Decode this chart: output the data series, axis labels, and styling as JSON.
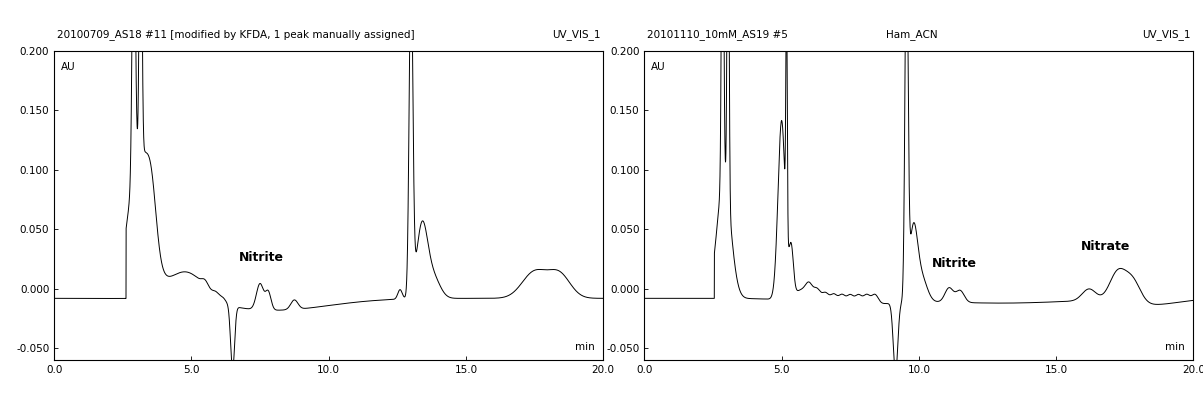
{
  "left_title_left": "20100709_AS18 #11 [modified by KFDA, 1 peak manually assigned]",
  "left_title_right": "UV_VIS_1",
  "right_title_left": "20101110_10mM_AS19 #5",
  "right_title_mid": "Ham_ACN",
  "right_title_right": "UV_VIS_1",
  "ylabel": "AU",
  "xlabel": "min",
  "ylim": [
    -0.06,
    0.2
  ],
  "xlim": [
    0.0,
    20.0
  ],
  "line_color": "#000000",
  "bg_color": "#ffffff",
  "fontsize_title": 7.5,
  "fontsize_label": 8,
  "fontsize_annotation": 9
}
